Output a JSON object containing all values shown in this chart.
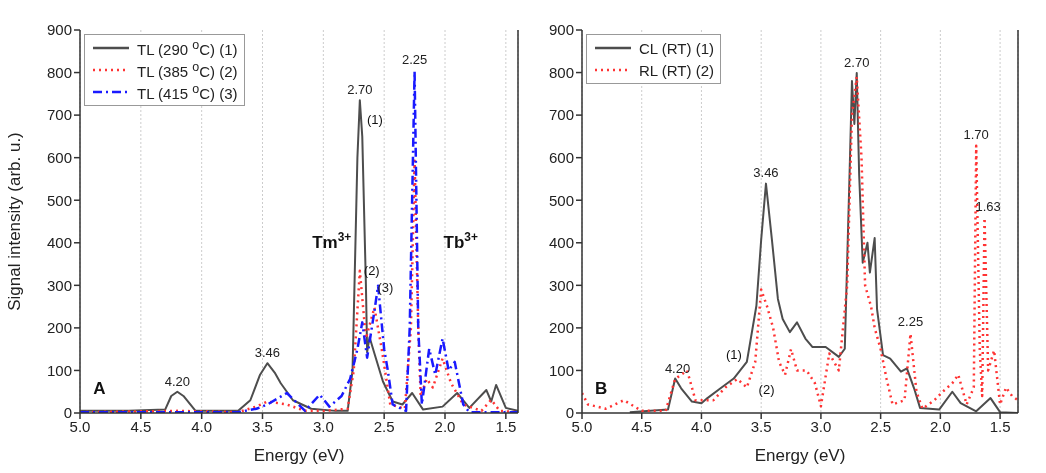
{
  "chart_data": [
    {
      "type": "line",
      "xlabel": "Energy (eV)",
      "ylabel": "Signal intensity (arb. u.)",
      "xlim": [
        5.0,
        1.4
      ],
      "xticks": [
        {
          "value": 5,
          "label": "5.0"
        },
        4.5,
        {
          "value": 4,
          "label": "4.0"
        },
        3.5,
        {
          "value": 3,
          "label": "3.0"
        },
        2.5,
        {
          "value": 2,
          "label": "2.0"
        },
        1.5
      ],
      "ylim": [
        0,
        900
      ],
      "yticks": [
        0,
        100,
        200,
        300,
        400,
        500,
        600,
        700,
        800,
        900
      ],
      "grid": "x",
      "legend": "top left",
      "marker": "none",
      "series": [
        {
          "name": "TL (290 $^{o}$C) (1)",
          "color": "#4d4d4d",
          "line_style": "solid",
          "x": [
            5.0,
            4.6,
            4.3,
            4.25,
            4.2,
            4.15,
            4.05,
            3.7,
            3.6,
            3.52,
            3.46,
            3.4,
            3.35,
            3.25,
            3.1,
            2.9,
            2.8,
            2.76,
            2.72,
            2.7,
            2.68,
            2.65,
            2.64,
            2.62,
            2.58,
            2.51,
            2.43,
            2.35,
            2.27,
            2.18,
            2.02,
            1.9,
            1.8,
            1.66,
            1.62,
            1.58,
            1.5,
            1.4
          ],
          "values": [
            5,
            5,
            8,
            40,
            50,
            40,
            5,
            5,
            30,
            90,
            117,
            95,
            70,
            30,
            10,
            5,
            5,
            100,
            600,
            735,
            650,
            300,
            143,
            178,
            140,
            74,
            27,
            20,
            47,
            8,
            15,
            47,
            12,
            54,
            27,
            66,
            12,
            5
          ]
        },
        {
          "name": "TL (385 $^{o}$C) (2)",
          "color": "#ff3333",
          "line_style": "dotted",
          "x": [
            5.0,
            4.2,
            3.7,
            3.55,
            3.46,
            3.3,
            3.15,
            3.0,
            2.8,
            2.75,
            2.7,
            2.65,
            2.58,
            2.52,
            2.45,
            2.33,
            2.28,
            2.25,
            2.22,
            2.2,
            2.15,
            2.1,
            2.02,
            1.95,
            1.85,
            1.7,
            1.62,
            1.55,
            1.4
          ],
          "values": [
            2,
            5,
            2,
            15,
            27,
            20,
            5,
            5,
            10,
            100,
            334,
            175,
            248,
            150,
            20,
            10,
            200,
            593,
            200,
            40,
            80,
            60,
            128,
            70,
            20,
            5,
            31,
            5,
            2
          ]
        },
        {
          "name": "TL (415 $^{o}$C) (3)",
          "color": "#1a1aff",
          "line_style": "dashed",
          "x": [
            5.0,
            3.7,
            3.55,
            3.46,
            3.3,
            3.15,
            3.03,
            2.95,
            2.85,
            2.78,
            2.72,
            2.68,
            2.64,
            2.58,
            2.55,
            2.5,
            2.47,
            2.43,
            2.32,
            2.29,
            2.25,
            2.22,
            2.19,
            2.13,
            2.08,
            2.02,
            1.97,
            1.92,
            1.85,
            1.8,
            1.4
          ],
          "values": [
            2,
            2,
            10,
            20,
            47,
            5,
            43,
            15,
            40,
            80,
            150,
            213,
            130,
            240,
            299,
            150,
            100,
            20,
            5,
            200,
            803,
            200,
            20,
            151,
            90,
            175,
            100,
            120,
            20,
            2,
            2
          ]
        }
      ],
      "annotations": [
        {
          "text": "4.20",
          "x": 4.2,
          "y": 50
        },
        {
          "text": "3.46",
          "x": 3.46,
          "y": 117
        },
        {
          "text": "2.70",
          "x": 2.7,
          "y": 735
        },
        "(1)",
        "(2)",
        {
          "text": "(3)",
          "x": 2.49,
          "y": 270
        },
        {
          "text": "2.25",
          "x": 2.25,
          "y": 805
        },
        "Tm$^{3+}$",
        "Tb$^{3+}$",
        "A"
      ]
    },
    {
      "type": "line",
      "xlabel": "Energy (eV)",
      "xlim": [
        5.0,
        1.35
      ],
      "xticks": [
        {
          "value": 5,
          "label": "5.0"
        },
        4.5,
        {
          "value": 4,
          "label": "4.0"
        },
        3.5,
        {
          "value": 3,
          "label": "3.0"
        },
        2.5,
        {
          "value": 2,
          "label": "2.0"
        },
        1.5
      ],
      "ylim": [
        0,
        900
      ],
      "yticks": [
        0,
        100,
        200,
        300,
        400,
        500,
        600,
        700,
        800,
        900
      ],
      "grid": "x",
      "legend": "top left",
      "marker": "none",
      "series": [
        {
          "name": "CL (RT) (1)",
          "color": "#4d4d4d",
          "line_style": "solid",
          "x": [
            4.6,
            4.28,
            4.22,
            4.17,
            4.08,
            4.0,
            3.95,
            3.84,
            3.73,
            3.62,
            3.54,
            3.5,
            3.46,
            3.41,
            3.36,
            3.32,
            3.26,
            3.2,
            3.13,
            3.07,
            2.96,
            2.85,
            2.8,
            2.76,
            2.74,
            2.72,
            2.7,
            2.68,
            2.65,
            2.61,
            2.59,
            2.55,
            2.53,
            2.48,
            2.42,
            2.33,
            2.28,
            2.22,
            2.17,
            2.01,
            1.9,
            1.83,
            1.7,
            1.58,
            1.5,
            1.35
          ],
          "values": [
            2,
            8,
            81,
            58,
            27,
            23,
            35,
            58,
            81,
            120,
            252,
            407,
            539,
            407,
            268,
            221,
            190,
            213,
            175,
            155,
            155,
            132,
            151,
            562,
            780,
            679,
            799,
            562,
            353,
            400,
            330,
            411,
            244,
            136,
            128,
            97,
            105,
            58,
            12,
            8,
            50,
            23,
            4,
            35,
            2,
            0
          ]
        },
        {
          "name": "RL (RT) (2)",
          "color": "#ff3333",
          "line_style": "dotted",
          "x": [
            5.0,
            4.95,
            4.8,
            4.65,
            4.5,
            4.3,
            4.22,
            4.12,
            4.05,
            3.9,
            3.8,
            3.7,
            3.62,
            3.55,
            3.5,
            3.45,
            3.4,
            3.35,
            3.3,
            3.25,
            3.2,
            3.12,
            3.05,
            3.0,
            2.93,
            2.85,
            2.78,
            2.74,
            2.7,
            2.66,
            2.63,
            2.58,
            2.55,
            2.5,
            2.45,
            2.4,
            2.3,
            2.25,
            2.2,
            2.15,
            2.05,
            1.98,
            1.9,
            1.85,
            1.78,
            1.72,
            1.7,
            1.67,
            1.65,
            1.63,
            1.6,
            1.55,
            1.5,
            1.45,
            1.4,
            1.35
          ],
          "values": [
            47,
            20,
            10,
            30,
            5,
            5,
            80,
            100,
            30,
            30,
            60,
            80,
            60,
            120,
            290,
            250,
            200,
            120,
            90,
            150,
            100,
            100,
            70,
            16,
            140,
            100,
            300,
            700,
            790,
            600,
            300,
            250,
            200,
            150,
            80,
            20,
            30,
            186,
            50,
            10,
            30,
            50,
            70,
            90,
            20,
            60,
            628,
            150,
            40,
            458,
            100,
            147,
            20,
            60,
            40,
            30
          ]
        }
      ],
      "annotations": [
        {
          "text": "4.20",
          "x": 4.2,
          "y": 80
        },
        {
          "text": "3.46",
          "x": 3.46,
          "y": 540
        },
        {
          "text": "2.70",
          "x": 2.7,
          "y": 800
        },
        {
          "text": "2.25",
          "x": 2.25,
          "y": 190
        },
        {
          "text": "1.70",
          "x": 1.7,
          "y": 630
        },
        {
          "text": "1.63",
          "x": 1.6,
          "y": 460
        },
        "(1)",
        "(2)",
        "B"
      ]
    }
  ]
}
